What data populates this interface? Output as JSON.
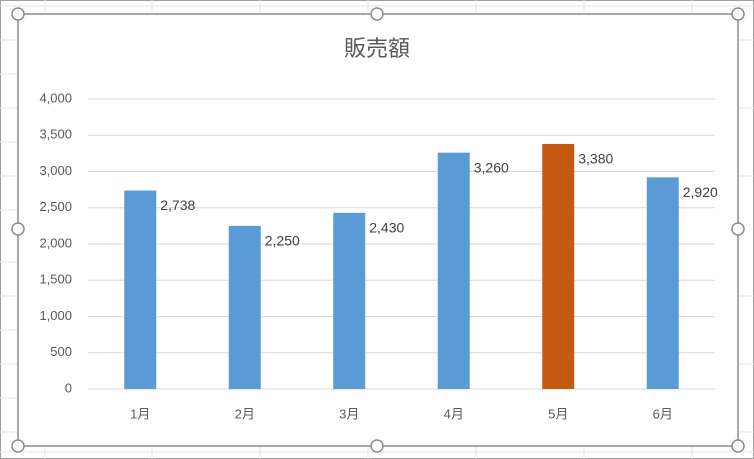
{
  "chart_data": {
    "type": "bar",
    "title": "販売額",
    "categories": [
      "1月",
      "2月",
      "3月",
      "4月",
      "5月",
      "6月"
    ],
    "values": [
      2738,
      2250,
      2430,
      3260,
      3380,
      2920
    ],
    "value_labels": [
      "2,738",
      "2,250",
      "2,430",
      "3,260",
      "3,380",
      "2,920"
    ],
    "colors": [
      "#5b9bd5",
      "#5b9bd5",
      "#5b9bd5",
      "#5b9bd5",
      "#c55a11",
      "#5b9bd5"
    ],
    "ylim": [
      0,
      4000
    ],
    "yticks": [
      0,
      500,
      {
        "value": 1000,
        "label": "1,000"
      },
      {
        "value": 1500,
        "label": "1,500"
      },
      {
        "value": 2000,
        "label": "2,000"
      },
      {
        "value": 2500,
        "label": "2,500"
      },
      {
        "value": 3000,
        "label": "3,000"
      },
      {
        "value": 3500,
        "label": "3,500"
      },
      {
        "value": 4000,
        "label": "4,000"
      }
    ],
    "grid": true
  }
}
